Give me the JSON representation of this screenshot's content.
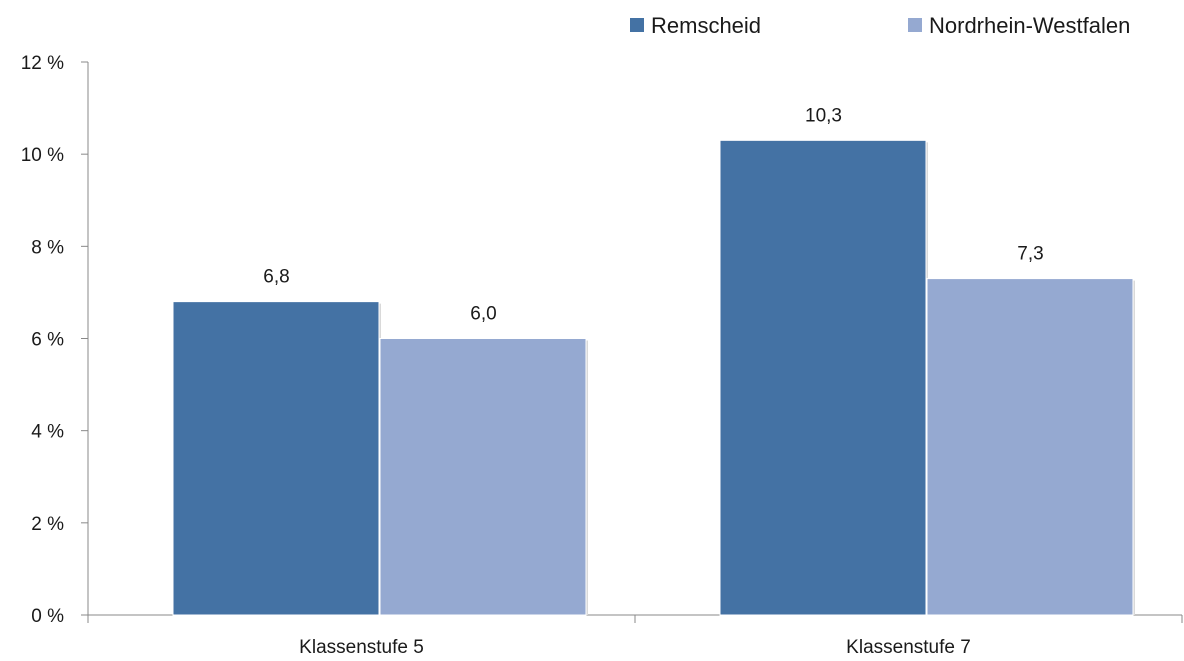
{
  "chart_data": {
    "type": "bar",
    "categories": [
      "Klassenstufe 5",
      "Klassenstufe 7"
    ],
    "series": [
      {
        "name": "Remscheid",
        "values": [
          6.8,
          10.3
        ],
        "labels": [
          "6,8",
          "10,3"
        ],
        "color": "#4472a4"
      },
      {
        "name": "Nordrhein-Westfalen",
        "values": [
          6.0,
          7.3
        ],
        "labels": [
          "6,0",
          "7,3"
        ],
        "color": "#95a9d1"
      }
    ],
    "ylim": [
      0,
      12
    ],
    "yticks": [
      0,
      2,
      4,
      6,
      8,
      10,
      12
    ],
    "ytick_labels": [
      "0 %",
      "2 %",
      "4 %",
      "6 %",
      "8 %",
      "10 %",
      "12 %"
    ],
    "title": "",
    "xlabel": "",
    "ylabel": "",
    "grid": false,
    "legend_position": "top-right",
    "axis_color": "#888888"
  }
}
